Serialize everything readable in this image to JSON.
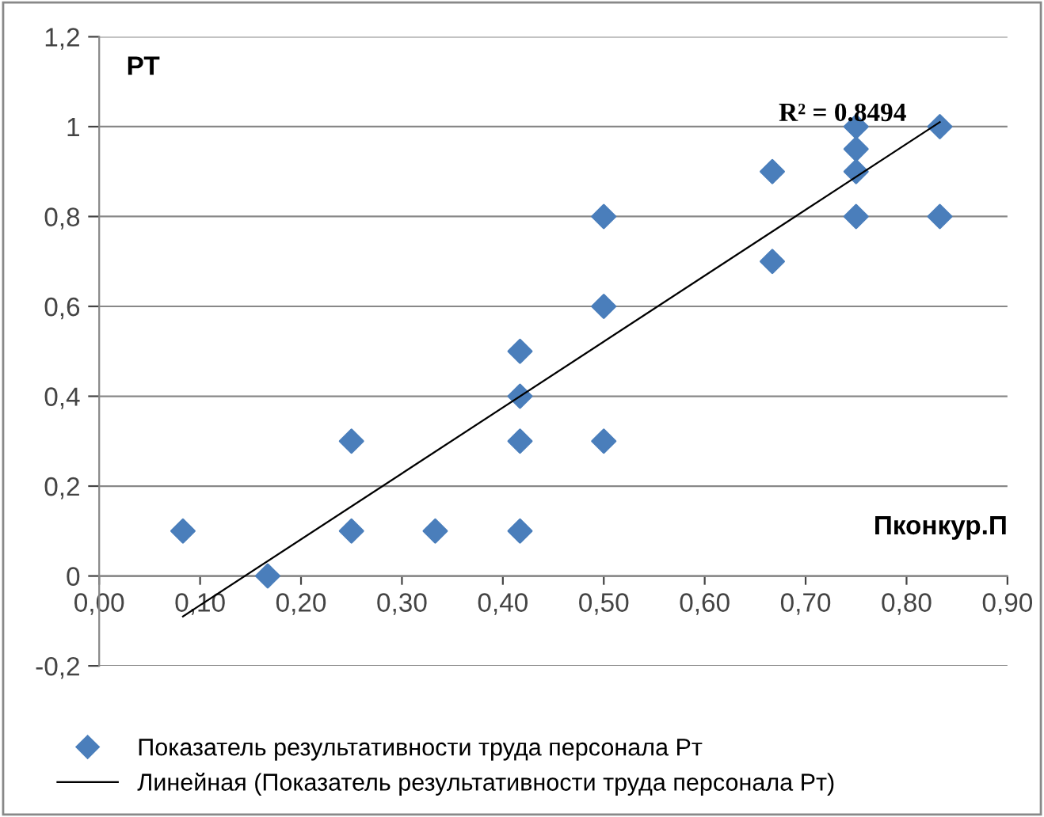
{
  "chart_data": {
    "type": "scatter",
    "xlabel": "Пконкур.П",
    "ylabel": "РТ",
    "annotations": [
      "R² = 0.8494"
    ],
    "xlim": [
      0,
      0.9
    ],
    "ylim": [
      -0.2,
      1.2
    ],
    "xticks": [
      {
        "value": 0,
        "label": "0,00"
      },
      {
        "value": 0.1,
        "label": "0,10"
      },
      {
        "value": 0.2,
        "label": "0,20"
      },
      {
        "value": 0.3,
        "label": "0,30"
      },
      {
        "value": 0.4,
        "label": "0,40"
      },
      {
        "value": 0.5,
        "label": "0,50"
      },
      {
        "value": 0.6,
        "label": "0,60"
      },
      {
        "value": 0.7,
        "label": "0,70"
      },
      {
        "value": 0.8,
        "label": "0,80"
      },
      {
        "value": 0.9,
        "label": "0,90"
      }
    ],
    "yticks": [
      {
        "value": -0.2,
        "label": "-0,2"
      },
      0,
      {
        "value": 0.2,
        "label": "0,2"
      },
      {
        "value": 0.4,
        "label": "0,4"
      },
      {
        "value": 0.6,
        "label": "0,6"
      },
      {
        "value": 0.8,
        "label": "0,8"
      },
      1,
      {
        "value": 1.2,
        "label": "1,2"
      }
    ],
    "grid": "y",
    "legend": "bottom",
    "marker": "diamond",
    "series": [
      {
        "name": "Показатель результативности труда персонала Рт",
        "color": "#4a7ebb",
        "x": [
          0.083,
          0.167,
          0.25,
          0.25,
          0.333,
          0.417,
          0.417,
          0.417,
          0.417,
          0.5,
          0.5,
          0.5,
          0.667,
          0.667,
          0.75,
          0.75,
          0.75,
          0.75,
          0.833,
          0.833
        ],
        "values": [
          0.1,
          0,
          0.3,
          0.1,
          0.1,
          0.5,
          0.4,
          0.3,
          0.1,
          0.8,
          0.6,
          0.3,
          0.9,
          0.7,
          1,
          0.95,
          0.9,
          0.8,
          1,
          0.8
        ]
      },
      {
        "name": "Линейная (Показатель результативности труда персонала Рт)",
        "color": "#000000",
        "type": "line",
        "marker": "none",
        "x": [
          0.083,
          0.833
        ],
        "values": [
          -0.09,
          1.01
        ]
      }
    ]
  }
}
